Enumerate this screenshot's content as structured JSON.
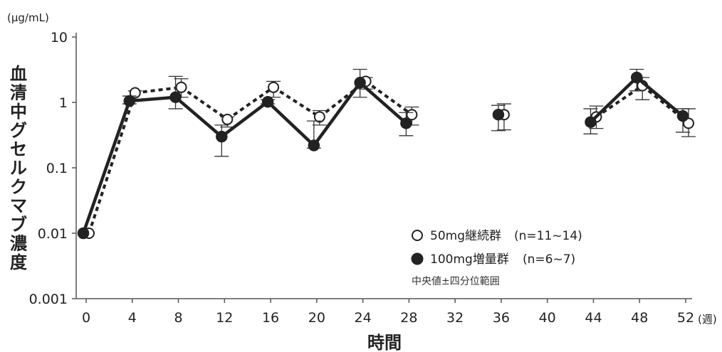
{
  "chart_data": {
    "type": "line",
    "y_scale": "log",
    "ylim": [
      0.001,
      10
    ],
    "xlim": [
      0,
      52
    ],
    "y_unit": "(μg/mL)",
    "x_unit": "(週)",
    "ylabel": "血清中グセルクマブ濃度",
    "xlabel": "時間",
    "x_ticks": [
      "0",
      "4",
      "8",
      "12",
      "16",
      "20",
      "24",
      "28",
      "32",
      "36",
      "40",
      "44",
      "48",
      "52"
    ],
    "y_ticks": [
      "0.001",
      "0.01",
      "0.1",
      "1",
      "10"
    ],
    "grid": false,
    "legend_position": "bottom-right",
    "note": "中央値±四分位範囲",
    "series": [
      {
        "name": "50mg継続群",
        "n_label": "(n=11~14)",
        "marker": "open-circle",
        "line_style": "dotted",
        "color": "#222222",
        "points": [
          {
            "x": 0,
            "y": 0.01,
            "lo": null,
            "hi": null
          },
          {
            "x": 4,
            "y": 1.4,
            "lo": 1.1,
            "hi": 1.5
          },
          {
            "x": 8,
            "y": 1.7,
            "lo": 1.2,
            "hi": 2.3
          },
          {
            "x": 12,
            "y": 0.55,
            "lo": 0.42,
            "hi": 0.6
          },
          {
            "x": 16,
            "y": 1.7,
            "lo": 1.2,
            "hi": 2.1
          },
          {
            "x": 20,
            "y": 0.6,
            "lo": 0.45,
            "hi": 0.75
          },
          {
            "x": 24,
            "y": 2.1,
            "lo": 1.6,
            "hi": 2.4
          },
          {
            "x": 28,
            "y": 0.65,
            "lo": 0.45,
            "hi": 0.85
          },
          {
            "x": 36,
            "y": 0.65,
            "lo": 0.38,
            "hi": 0.95
          },
          {
            "x": 44,
            "y": 0.6,
            "lo": 0.4,
            "hi": 0.88
          },
          {
            "x": 48,
            "y": 1.8,
            "lo": 1.1,
            "hi": 2.4
          },
          {
            "x": 52,
            "y": 0.48,
            "lo": 0.3,
            "hi": 0.8
          }
        ]
      },
      {
        "name": "100mg増量群",
        "n_label": "(n=6~7)",
        "marker": "filled-circle",
        "line_style": "solid",
        "color": "#222222",
        "points": [
          {
            "x": 0,
            "y": 0.01,
            "lo": null,
            "hi": null
          },
          {
            "x": 4,
            "y": 1.05,
            "lo": 0.95,
            "hi": 1.25
          },
          {
            "x": 8,
            "y": 1.2,
            "lo": 0.8,
            "hi": 2.5
          },
          {
            "x": 12,
            "y": 0.3,
            "lo": 0.15,
            "hi": 0.45
          },
          {
            "x": 16,
            "y": 1.02,
            "lo": 0.95,
            "hi": 1.1
          },
          {
            "x": 20,
            "y": 0.22,
            "lo": 0.2,
            "hi": 0.52
          },
          {
            "x": 24,
            "y": 2.0,
            "lo": 1.2,
            "hi": 3.2
          },
          {
            "x": 28,
            "y": 0.48,
            "lo": 0.31,
            "hi": 0.7
          },
          {
            "x": 36,
            "y": 0.65,
            "lo": 0.37,
            "hi": 0.9
          },
          {
            "x": 44,
            "y": 0.5,
            "lo": 0.33,
            "hi": 0.8
          },
          {
            "x": 48,
            "y": 2.4,
            "lo": 1.5,
            "hi": 3.2
          },
          {
            "x": 52,
            "y": 0.62,
            "lo": 0.35,
            "hi": 0.8
          }
        ]
      }
    ]
  }
}
